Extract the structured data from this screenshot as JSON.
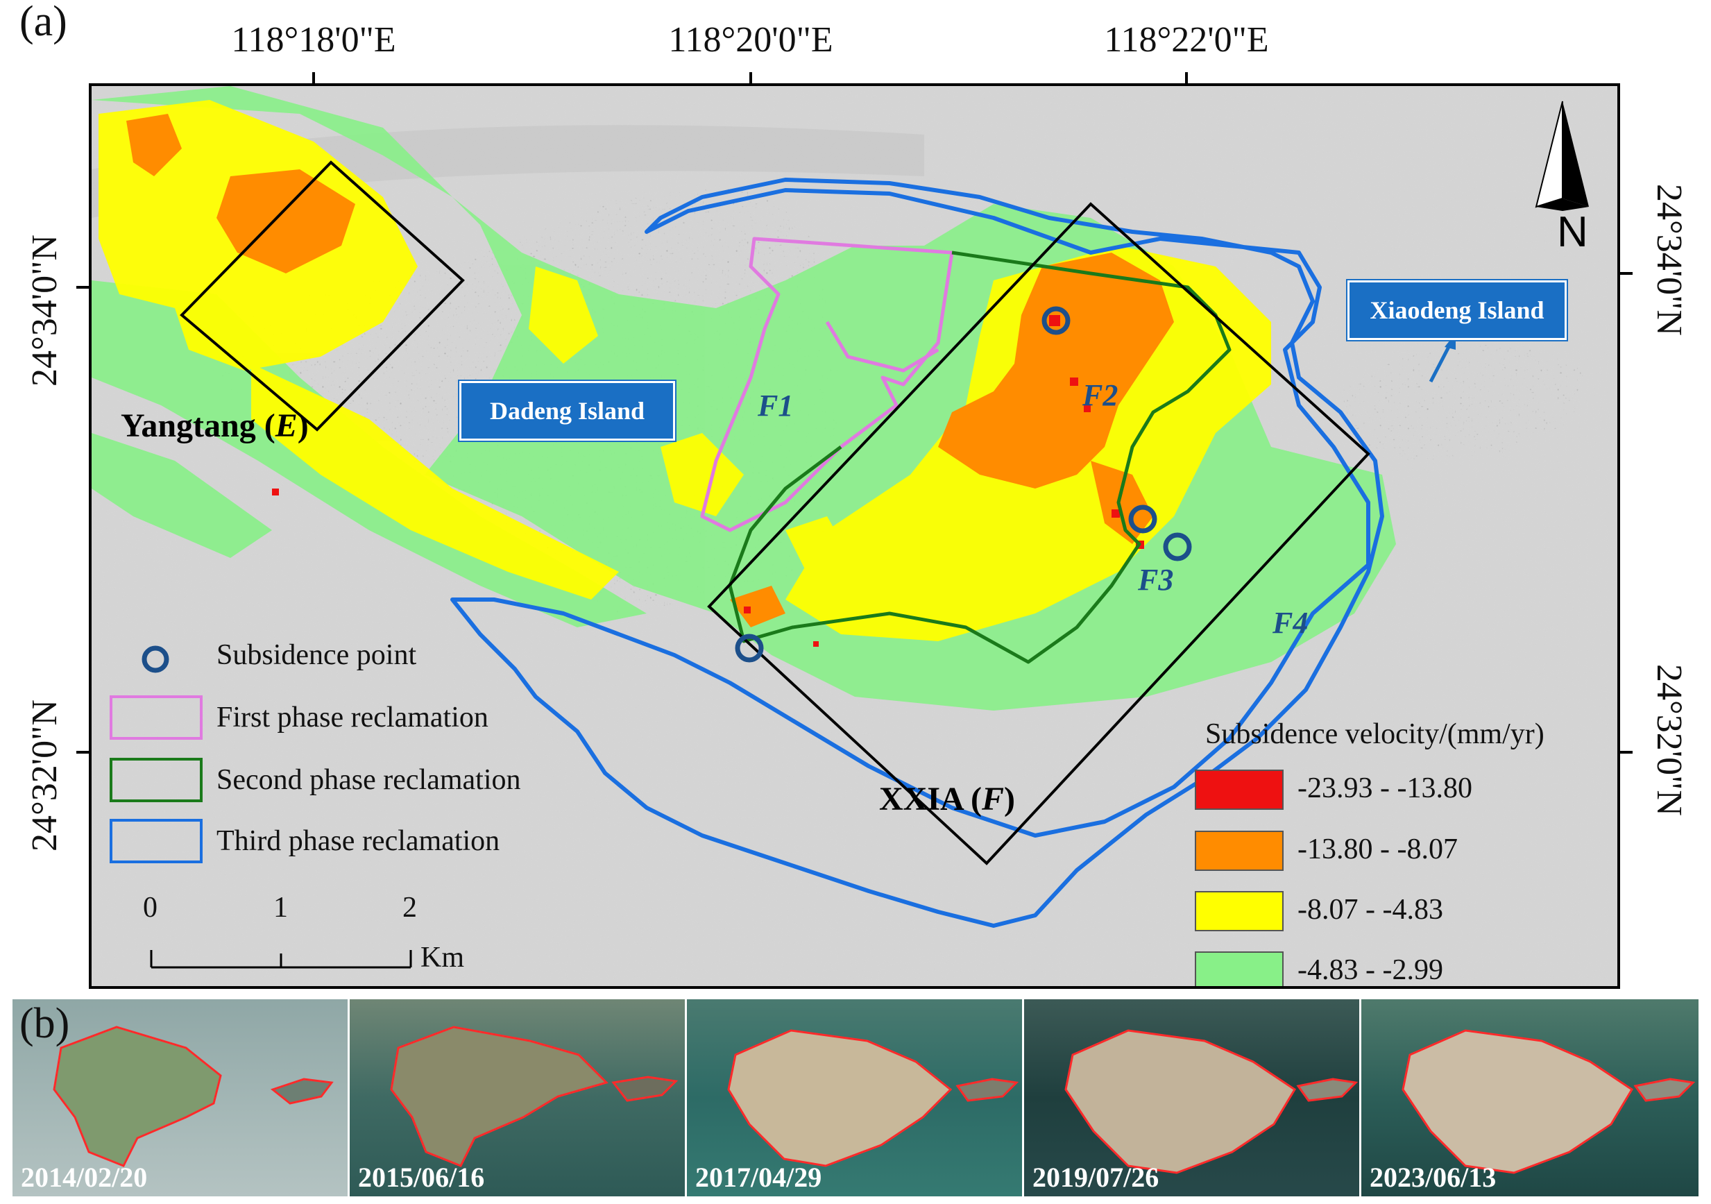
{
  "panel_a": {
    "label": "(a)",
    "longitude_labels": [
      "118°18'0\"E",
      "118°20'0\"E",
      "118°22'0\"E"
    ],
    "latitude_labels": [
      "24°34'0\"N",
      "24°32'0\"N"
    ],
    "north_arrow": {
      "icon": "north-arrow-icon",
      "label": "N"
    },
    "places": {
      "dadeng": "Dadeng Island",
      "xiaodeng": "Xiaodeng Island",
      "yangtang": "Yangtang (",
      "yangtang_code": "E",
      "yangtang_close": ")",
      "xxia": "XXIA (",
      "xxia_code": "F",
      "xxia_close": ")"
    },
    "subsidence_points": [
      "F1",
      "F2",
      "F3",
      "F4"
    ],
    "legend": {
      "subsidence_point": "Subsidence point",
      "first_phase": "First phase reclamation",
      "second_phase": "Second phase reclamation",
      "third_phase": "Third phase reclamation"
    },
    "scale_bar": {
      "ticks": [
        "0",
        "1",
        "2"
      ],
      "unit": "Km"
    },
    "velocity_legend": {
      "title": "Subsidence velocity/(mm/yr)",
      "classes": [
        {
          "range": "-23.93 - -13.80",
          "color": "#ee1111"
        },
        {
          "range": "-13.80 - -8.07",
          "color": "#ff8c00"
        },
        {
          "range": "-8.07 - -4.83",
          "color": "#ffff00"
        },
        {
          "range": "-4.83 - -2.99",
          "color": "#88f088"
        }
      ]
    },
    "colors": {
      "first_phase": "#e07ae0",
      "second_phase": "#1a7a1a",
      "third_phase": "#1a6fe0",
      "box": "#000000",
      "point": "#1c4f8a"
    }
  },
  "panel_b": {
    "label": "(b)",
    "dates": [
      "2014/02/20",
      "2015/06/16",
      "2017/04/29",
      "2019/07/26",
      "2023/06/13"
    ],
    "outline_color": "#ff2a2a"
  }
}
